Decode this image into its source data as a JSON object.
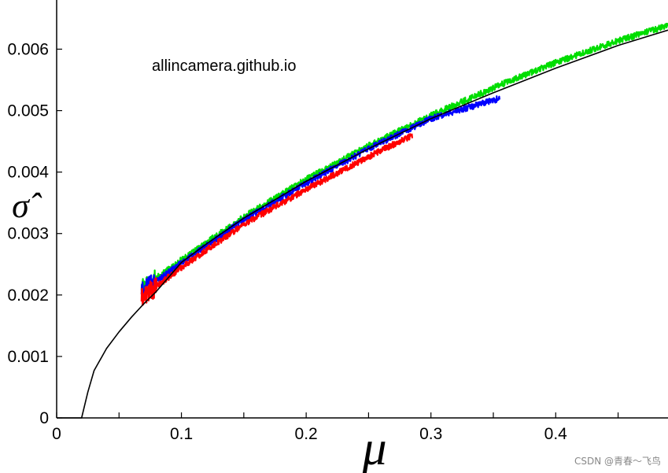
{
  "chart_data": {
    "type": "line",
    "title": "",
    "xlabel": "μ",
    "ylabel": "σ̂",
    "xlim": [
      0,
      0.49
    ],
    "ylim": [
      0,
      0.0068
    ],
    "xticks": [
      "0",
      "0.1",
      "0.2",
      "0.3",
      "0.4"
    ],
    "xtick_values": [
      0,
      0.1,
      0.2,
      0.3,
      0.4
    ],
    "yticks": [
      "0",
      "0.001",
      "0.002",
      "0.003",
      "0.004",
      "0.005",
      "0.006"
    ],
    "ytick_values": [
      0,
      0.001,
      0.002,
      0.003,
      0.004,
      0.005,
      0.006
    ],
    "grid": false,
    "annotations": [
      "allincamera.github.io"
    ],
    "series": [
      {
        "color": "#000000",
        "kind": "model-curve",
        "x": [
          0.0,
          0.02,
          0.025,
          0.03,
          0.04,
          0.05,
          0.06,
          0.07,
          0.08,
          0.1,
          0.12,
          0.15,
          0.2,
          0.25,
          0.3,
          0.35,
          0.4,
          0.45,
          0.49
        ],
        "y": [
          0.0,
          0.0,
          0.00042,
          0.00077,
          0.00113,
          0.0014,
          0.00164,
          0.00186,
          0.00206,
          0.00253,
          0.00283,
          0.00325,
          0.00385,
          0.00438,
          0.00487,
          0.00529,
          0.00569,
          0.00606,
          0.00631
        ]
      },
      {
        "color": "#ff0000",
        "kind": "measured",
        "x": [
          0.068,
          0.1,
          0.15,
          0.2,
          0.25,
          0.285
        ],
        "y": [
          0.00195,
          0.00245,
          0.00315,
          0.00372,
          0.00425,
          0.0046
        ]
      },
      {
        "color": "#0000ff",
        "kind": "measured",
        "x": [
          0.068,
          0.1,
          0.15,
          0.2,
          0.25,
          0.3,
          0.355
        ],
        "y": [
          0.00205,
          0.00252,
          0.00322,
          0.00382,
          0.00438,
          0.00487,
          0.0052
        ]
      },
      {
        "color": "#00dd00",
        "kind": "measured",
        "x": [
          0.068,
          0.1,
          0.15,
          0.2,
          0.25,
          0.3,
          0.35,
          0.4,
          0.45,
          0.49
        ],
        "y": [
          0.0021,
          0.00257,
          0.00327,
          0.00388,
          0.00443,
          0.00492,
          0.00537,
          0.00578,
          0.00614,
          0.00638
        ]
      }
    ]
  },
  "watermark": "CSDN @青春～飞鸟"
}
